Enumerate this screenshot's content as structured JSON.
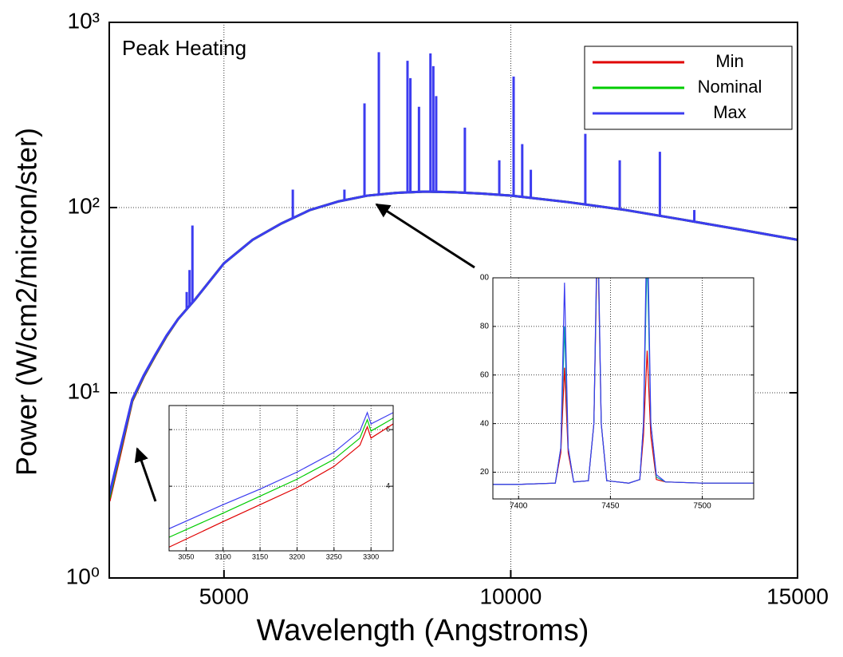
{
  "chart_data": [
    {
      "type": "line",
      "title": "Peak Heating",
      "x_label": "Wavelength (Angstroms)",
      "y_label": "Power (W/cm2/micron/ster)",
      "xlim": [
        3000,
        15000
      ],
      "xticks": [
        5000,
        10000,
        15000
      ],
      "ylim": [
        1,
        1000
      ],
      "log_y": true,
      "yticks": [
        {
          "value": 1,
          "label": "10⁰"
        },
        {
          "value": 10,
          "label": "10¹"
        },
        {
          "value": 100,
          "label": "10²"
        },
        {
          "value": 1000,
          "label": "10³"
        }
      ],
      "grid": true,
      "legend": "upper right",
      "x": [
        3000,
        3200,
        3400,
        3600,
        3800,
        4000,
        4200,
        4500,
        5000,
        5500,
        6000,
        6500,
        7000,
        7500,
        8000,
        8500,
        9000,
        9500,
        10000,
        11000,
        12000,
        13000,
        14000,
        15000
      ],
      "series": [
        {
          "name": "Min",
          "color": "#e00000",
          "values": [
            2.6,
            4.8,
            9.0,
            12.2,
            15.8,
            20.2,
            25,
            32,
            50,
            67,
            82,
            97,
            108,
            116,
            120,
            122,
            121,
            119,
            116,
            107,
            97,
            86,
            76,
            67
          ]
        },
        {
          "name": "Nominal",
          "color": "#00cc00",
          "values": [
            2.7,
            5.0,
            9.1,
            12.3,
            15.9,
            20.3,
            25,
            32,
            50,
            67,
            82,
            97,
            108,
            116,
            120,
            122,
            121,
            119,
            116,
            107,
            97,
            86,
            76,
            67
          ]
        },
        {
          "name": "Max",
          "color": "#3c3cf0",
          "values": [
            2.8,
            5.1,
            9.2,
            12.4,
            16,
            20.4,
            25,
            32,
            50,
            67,
            82,
            97,
            108,
            116,
            120,
            122,
            121,
            119,
            116,
            107,
            97,
            86,
            76,
            67
          ]
        }
      ],
      "peaks": {
        "color": "#3c3cf0",
        "x": [
          4350,
          4400,
          4450,
          6200,
          7100,
          7450,
          7700,
          8200,
          8250,
          8400,
          8600,
          8650,
          8700,
          9200,
          9800,
          10050,
          10200,
          10350,
          11300,
          11900,
          12600,
          13200
        ],
        "values": [
          35,
          46,
          80,
          125,
          125,
          365,
          690,
          620,
          500,
          350,
          680,
          580,
          400,
          270,
          180,
          510,
          220,
          160,
          250,
          180,
          200,
          97
        ]
      }
    },
    {
      "type": "line",
      "xlim": [
        3027,
        3330
      ],
      "xticks": [
        3050,
        3100,
        3150,
        3200,
        3250,
        3300
      ],
      "ylim": [
        1.72,
        6.85
      ],
      "yticks": [
        4,
        6
      ],
      "grid": true,
      "y_tick_side": "right",
      "x": [
        3027,
        3100,
        3150,
        3200,
        3250,
        3285,
        3295,
        3300,
        3330
      ],
      "series": [
        {
          "color": "#e00000",
          "values": [
            1.85,
            2.75,
            3.35,
            3.95,
            4.7,
            5.45,
            6.1,
            5.7,
            6.2
          ]
        },
        {
          "color": "#00cc00",
          "values": [
            2.2,
            3.05,
            3.65,
            4.25,
            4.95,
            5.7,
            6.35,
            5.95,
            6.4
          ]
        },
        {
          "color": "#3c3cf0",
          "values": [
            2.5,
            3.35,
            3.9,
            4.5,
            5.2,
            5.95,
            6.6,
            6.2,
            6.6
          ]
        }
      ]
    },
    {
      "type": "line",
      "xlim": [
        7386,
        7528
      ],
      "xticks": [
        7400,
        7450,
        7500
      ],
      "ylim": [
        9,
        100
      ],
      "yticks": [
        20,
        40,
        60,
        80,
        {
          "value": 100,
          "label": "00"
        }
      ],
      "grid": true,
      "y_tick_side": "left",
      "x": [
        7386,
        7400,
        7420,
        7423,
        7425,
        7427,
        7430,
        7438,
        7441,
        7443,
        7445,
        7448,
        7460,
        7466,
        7468,
        7470,
        7472,
        7475,
        7480,
        7500,
        7528
      ],
      "series": [
        {
          "color": "#e00000",
          "values": [
            15,
            15,
            15.5,
            28,
            63,
            28,
            16,
            16.5,
            40,
            120,
            40,
            16.5,
            15.5,
            17,
            35,
            70,
            35,
            17,
            16,
            15.5,
            15.5
          ]
        },
        {
          "color": "#00a0a0",
          "values": [
            15,
            15,
            15.5,
            30,
            80,
            30,
            16,
            16.5,
            40,
            125,
            40,
            16.5,
            15.5,
            17,
            40,
            110,
            40,
            18,
            16,
            15.5,
            15.5
          ]
        },
        {
          "color": "#3c3cf0",
          "values": [
            15,
            15,
            15.5,
            30,
            98,
            30,
            16,
            16.5,
            40,
            130,
            40,
            16.5,
            15.5,
            17,
            40,
            130,
            40,
            19,
            16,
            15.5,
            15.5
          ]
        }
      ]
    }
  ]
}
